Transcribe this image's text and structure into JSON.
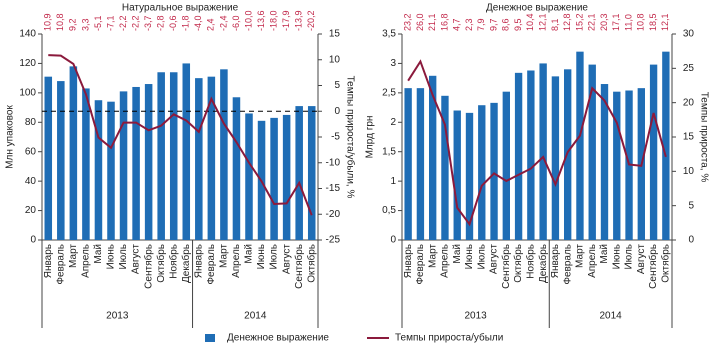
{
  "chart_data": [
    {
      "type": "bar_line",
      "title": "Натуральное выражение",
      "y_label": "Млн упаковок",
      "y2_label": "Темпы прироста/убыли, %",
      "categories": [
        "Январь",
        "Февраль",
        "Март",
        "Апрель",
        "Май",
        "Июнь",
        "Июль",
        "Август",
        "Сентябрь",
        "Октябрь",
        "Ноябрь",
        "Декабрь",
        "Январь",
        "Февраль",
        "Март",
        "Апрель",
        "Май",
        "Июнь",
        "Июль",
        "Август",
        "Сентябрь",
        "Октябрь"
      ],
      "x_groups": [
        "2013",
        "2014"
      ],
      "ylim": [
        0,
        140
      ],
      "yticks": [
        0,
        20,
        40,
        60,
        80,
        100,
        120,
        140
      ],
      "y2lim": [
        -25,
        15
      ],
      "y2ticks": [
        -25,
        -20,
        -15,
        -10,
        -5,
        0,
        5,
        10,
        15
      ],
      "reference_line": {
        "axis": "y2",
        "value": 0,
        "style": "dashed"
      },
      "label_color": "#c2284a",
      "series": [
        {
          "name": "Денежное выражение",
          "type": "bar",
          "color": "#1f6db5",
          "values": [
            111,
            108,
            118,
            103,
            95,
            94,
            101,
            104,
            106,
            114,
            114,
            120,
            110,
            111,
            116,
            97,
            86,
            81,
            83,
            85,
            91,
            91
          ]
        },
        {
          "name": "Темпы прироста/убыли",
          "type": "line",
          "axis": "y2",
          "color": "#8b1a3c",
          "values": [
            10.9,
            10.8,
            9.2,
            3.3,
            -5.1,
            -7.1,
            -2.2,
            -2.2,
            -3.7,
            -2.8,
            -0.6,
            -1.8,
            -4.0,
            2.4,
            -2.4,
            -6.0,
            -10.0,
            -13.6,
            -18.0,
            -17.9,
            -13.9,
            -20.2
          ],
          "value_labels": [
            "10,9",
            "10,8",
            "9,2",
            "3,3",
            "-5,1",
            "-7,1",
            "-2,2",
            "-2,2",
            "-3,7",
            "-2,8",
            "-0,6",
            "-1,8",
            "-4,0",
            "2,4",
            "-2,4",
            "-6,0",
            "-10,0",
            "-13,6",
            "-18,0",
            "-17,9",
            "-13,9",
            "-20,2"
          ]
        }
      ]
    },
    {
      "type": "bar_line",
      "title": "Денежное выражение",
      "y_label": "Млрд грн",
      "y2_label": "Темпы прироста, %",
      "categories": [
        "Январь",
        "Февраль",
        "Март",
        "Апрель",
        "Май",
        "Июнь",
        "Июль",
        "Август",
        "Сентябрь",
        "Октябрь",
        "Ноябрь",
        "Декабрь",
        "Январь",
        "Февраль",
        "Март",
        "Апрель",
        "Май",
        "Июнь",
        "Июль",
        "Август",
        "Сентябрь",
        "Октябрь"
      ],
      "x_groups": [
        "2013",
        "2014"
      ],
      "ylim": [
        0,
        3.5
      ],
      "yticks": [
        0,
        {
          "value": 0.5,
          "label": "0,5"
        },
        1,
        {
          "value": 1.5,
          "label": "1,5"
        },
        2,
        {
          "value": 2.5,
          "label": "2,5"
        },
        3,
        {
          "value": 3.5,
          "label": "3,5"
        }
      ],
      "y2lim": [
        0,
        30
      ],
      "y2ticks": [
        0,
        5,
        10,
        15,
        20,
        25,
        30
      ],
      "label_color": "#c2284a",
      "series": [
        {
          "name": "Денежное выражение",
          "type": "bar",
          "color": "#1f6db5",
          "values": [
            2.58,
            2.58,
            2.79,
            2.45,
            2.2,
            2.16,
            2.29,
            2.33,
            2.52,
            2.84,
            2.88,
            3.0,
            2.78,
            2.9,
            3.2,
            2.98,
            2.65,
            2.52,
            2.54,
            2.58,
            2.98,
            3.2
          ]
        },
        {
          "name": "Темпы прироста/убыли",
          "type": "line",
          "axis": "y2",
          "color": "#8b1a3c",
          "values": [
            23.2,
            26.0,
            21.1,
            16.8,
            4.7,
            2.3,
            7.9,
            9.7,
            8.6,
            9.5,
            10.4,
            12.1,
            8.1,
            12.8,
            15.2,
            22.1,
            20.3,
            17.1,
            11.0,
            10.8,
            18.5,
            12.1
          ],
          "value_labels": [
            "23,2",
            "26,0",
            "21,1",
            "16,8",
            "4,7",
            "2,3",
            "7,9",
            "9,7",
            "8,6",
            "9,5",
            "10,4",
            "12,1",
            "8,1",
            "12,8",
            "15,2",
            "22,1",
            "20,3",
            "17,1",
            "11,0",
            "10,8",
            "18,5",
            "12,1"
          ]
        }
      ]
    }
  ]
}
